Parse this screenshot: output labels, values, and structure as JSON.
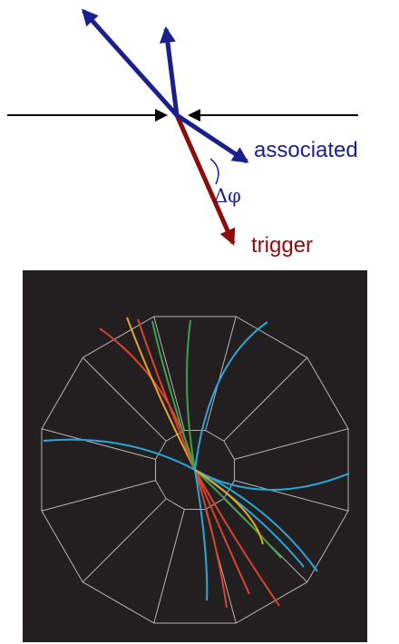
{
  "labels": {
    "associated": "associated",
    "delta_phi": "Δφ",
    "trigger": "trigger"
  }
}
